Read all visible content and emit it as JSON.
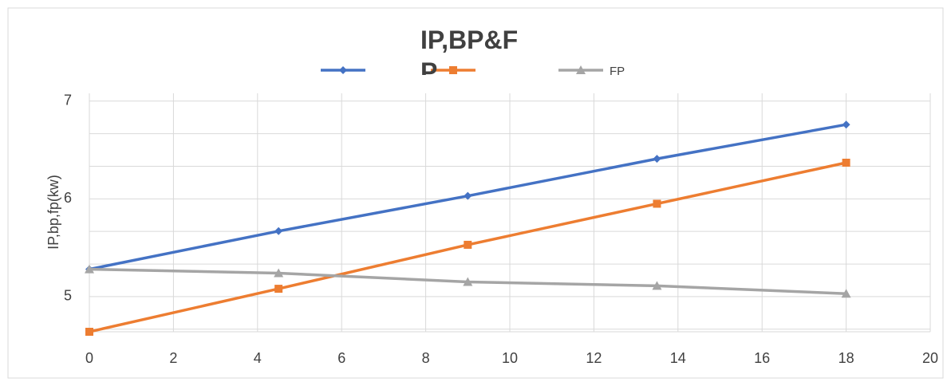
{
  "chart_data": {
    "type": "line",
    "title": "IP,BP&FP",
    "y_label": "IP,bp,fp(kw)",
    "x": [
      0,
      4.5,
      9,
      13.5,
      18
    ],
    "series": [
      {
        "color": "#4472c4",
        "marker": "diamond",
        "values": [
          5.28,
          5.67,
          6.03,
          6.41,
          6.76
        ]
      },
      {
        "color": "#ed7d31",
        "marker": "square",
        "values": [
          4.64,
          5.08,
          5.53,
          5.95,
          6.37
        ]
      },
      {
        "name": "FP",
        "color": "#a5a5a5",
        "marker": "triangle",
        "values": [
          5.28,
          5.24,
          5.15,
          5.11,
          5.03
        ]
      }
    ],
    "xlim": [
      0,
      20
    ],
    "xticks": [
      0,
      2,
      4,
      6,
      8,
      10,
      12,
      14,
      16,
      18,
      20
    ],
    "ylim": [
      4.64,
      7.08
    ],
    "yticks": [
      5,
      6,
      7
    ],
    "y_minor_grid": [
      4.667,
      5.333,
      5.667,
      6.333,
      6.667
    ],
    "grid": true
  }
}
